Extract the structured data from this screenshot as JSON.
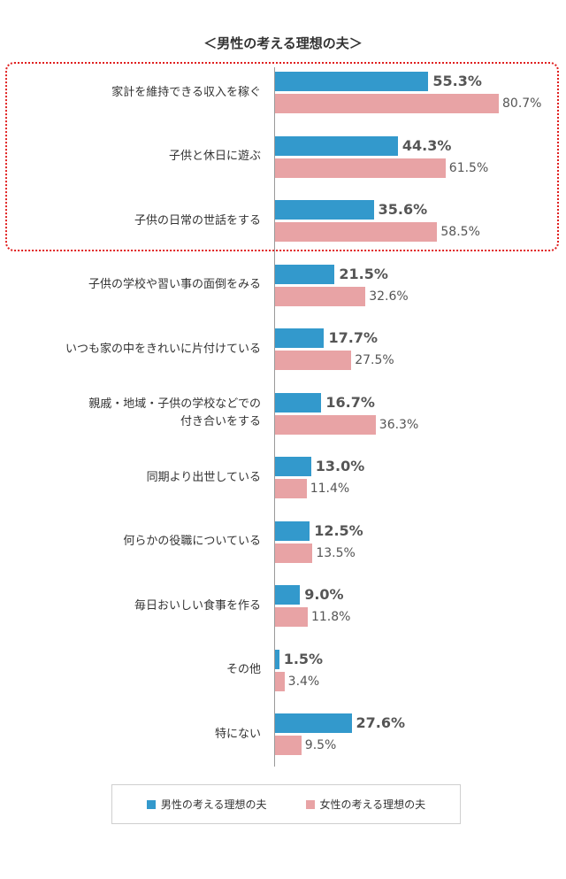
{
  "chart_data": {
    "type": "bar",
    "orientation": "horizontal",
    "title": "＜男性の考える理想の夫＞",
    "categories": [
      "家計を維持できる収入を稼ぐ",
      "子供と休日に遊ぶ",
      "子供の日常の世話をする",
      "子供の学校や習い事の面倒をみる",
      "いつも家の中をきれいに片付けている",
      "親戚・地域・子供の学校などでの\n付き合いをする",
      "同期より出世している",
      "何らかの役職についている",
      "毎日おいしい食事を作る",
      "その他",
      "特にない"
    ],
    "series": [
      {
        "name": "男性の考える理想の夫",
        "color": "#3399cc",
        "values": [
          55.3,
          44.3,
          35.6,
          21.5,
          17.7,
          16.7,
          13.0,
          12.5,
          9.0,
          1.5,
          27.6
        ],
        "labels": [
          "55.3%",
          "44.3%",
          "35.6%",
          "21.5%",
          "17.7%",
          "16.7%",
          "13.0%",
          "12.5%",
          "9.0%",
          "1.5%",
          "27.6%"
        ]
      },
      {
        "name": "女性の考える理想の夫",
        "color": "#e8a3a5",
        "values": [
          80.7,
          61.5,
          58.5,
          32.6,
          27.5,
          36.3,
          11.4,
          13.5,
          11.8,
          3.4,
          9.5
        ],
        "labels": [
          "80.7%",
          "61.5%",
          "58.5%",
          "32.6%",
          "27.5%",
          "36.3%",
          "11.4%",
          "13.5%",
          "11.8%",
          "3.4%",
          "9.5%"
        ]
      }
    ],
    "xlim": [
      0,
      100
    ],
    "highlighted_categories": 3,
    "legend_position": "bottom",
    "grid": false
  }
}
